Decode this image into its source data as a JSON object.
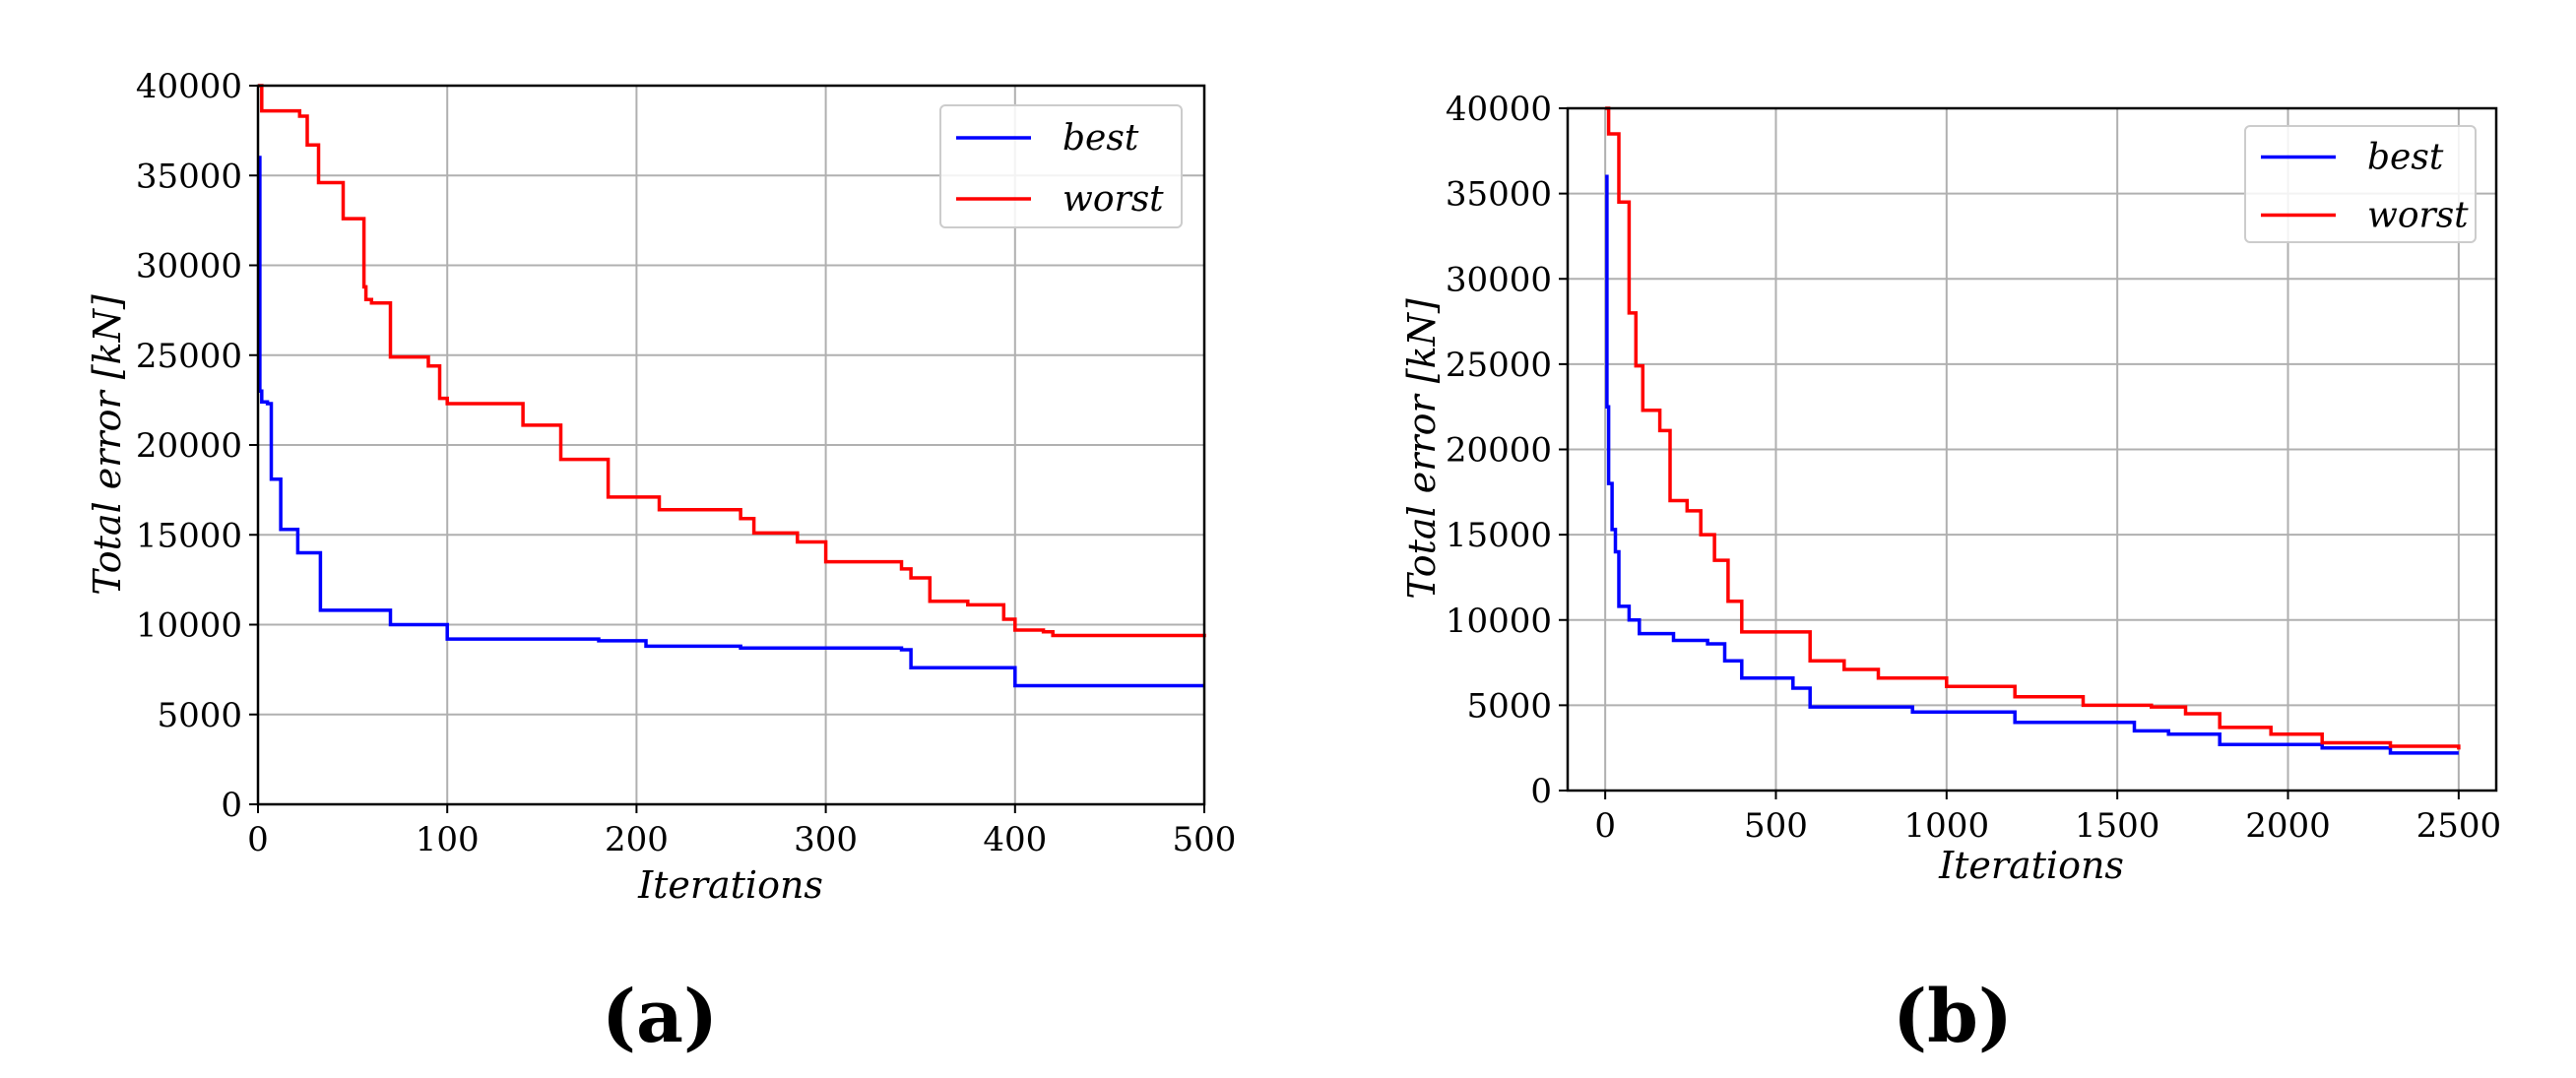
{
  "colors": {
    "best": "#0000ff",
    "worst": "#ff0000",
    "grid": "#b0b0b0"
  },
  "chart_data": [
    {
      "type": "line",
      "panel_label": "(a)",
      "xlabel": "Iterations",
      "ylabel": "Total error [kN]",
      "xlim": [
        0,
        500
      ],
      "ylim": [
        0,
        40000
      ],
      "xticks": [
        0,
        100,
        200,
        300,
        400,
        500
      ],
      "yticks": [
        0,
        5000,
        10000,
        15000,
        20000,
        25000,
        30000,
        35000,
        40000
      ],
      "grid": true,
      "legend_position": "upper right",
      "step": true,
      "series": [
        {
          "name": "best",
          "color": "#0000ff",
          "x": [
            0,
            1,
            2,
            5,
            7,
            12,
            21,
            33,
            70,
            100,
            180,
            205,
            255,
            340,
            345,
            400,
            500
          ],
          "y": [
            36000,
            23000,
            22400,
            22300,
            18100,
            15300,
            14000,
            10800,
            10000,
            9200,
            9100,
            8800,
            8700,
            8600,
            7600,
            6600,
            6600
          ]
        },
        {
          "name": "worst",
          "color": "#ff0000",
          "x": [
            0,
            2,
            22,
            26,
            32,
            45,
            56,
            57,
            60,
            70,
            90,
            96,
            100,
            140,
            160,
            185,
            212,
            255,
            262,
            285,
            300,
            340,
            345,
            355,
            375,
            394,
            400,
            415,
            420,
            500
          ],
          "y": [
            40000,
            38600,
            38300,
            36700,
            34600,
            32600,
            28800,
            28100,
            27900,
            24900,
            24400,
            22600,
            22300,
            21100,
            19200,
            17100,
            16400,
            15900,
            15100,
            14600,
            13500,
            13100,
            12600,
            11300,
            11100,
            10300,
            9700,
            9600,
            9400,
            9300
          ]
        }
      ]
    },
    {
      "type": "line",
      "panel_label": "(b)",
      "xlabel": "Iterations",
      "ylabel": "Total error [kN]",
      "xlim": [
        -110,
        2610
      ],
      "ylim": [
        0,
        40000
      ],
      "xticks": [
        0,
        500,
        1000,
        1500,
        2000,
        2500
      ],
      "yticks": [
        0,
        5000,
        10000,
        15000,
        20000,
        25000,
        30000,
        35000,
        40000
      ],
      "grid": true,
      "legend_position": "upper right",
      "step": true,
      "series": [
        {
          "name": "best",
          "color": "#0000ff",
          "x": [
            0,
            5,
            10,
            20,
            30,
            40,
            70,
            100,
            200,
            300,
            350,
            400,
            550,
            600,
            900,
            1200,
            1550,
            1650,
            1800,
            2100,
            2300,
            2500
          ],
          "y": [
            36000,
            22500,
            18000,
            15300,
            14000,
            10800,
            10000,
            9200,
            8800,
            8600,
            7600,
            6600,
            6000,
            4900,
            4600,
            4000,
            3500,
            3300,
            2700,
            2500,
            2200,
            2200
          ]
        },
        {
          "name": "worst",
          "color": "#ff0000",
          "x": [
            0,
            10,
            40,
            70,
            90,
            110,
            160,
            190,
            240,
            280,
            320,
            360,
            400,
            600,
            700,
            800,
            1000,
            1200,
            1400,
            1600,
            1700,
            1800,
            1950,
            2100,
            2300,
            2500
          ],
          "y": [
            40000,
            38500,
            34500,
            28000,
            24900,
            22300,
            21100,
            17000,
            16400,
            15000,
            13500,
            11100,
            9300,
            7600,
            7100,
            6600,
            6100,
            5500,
            5000,
            4900,
            4500,
            3700,
            3300,
            2800,
            2600,
            2400
          ]
        }
      ]
    }
  ]
}
